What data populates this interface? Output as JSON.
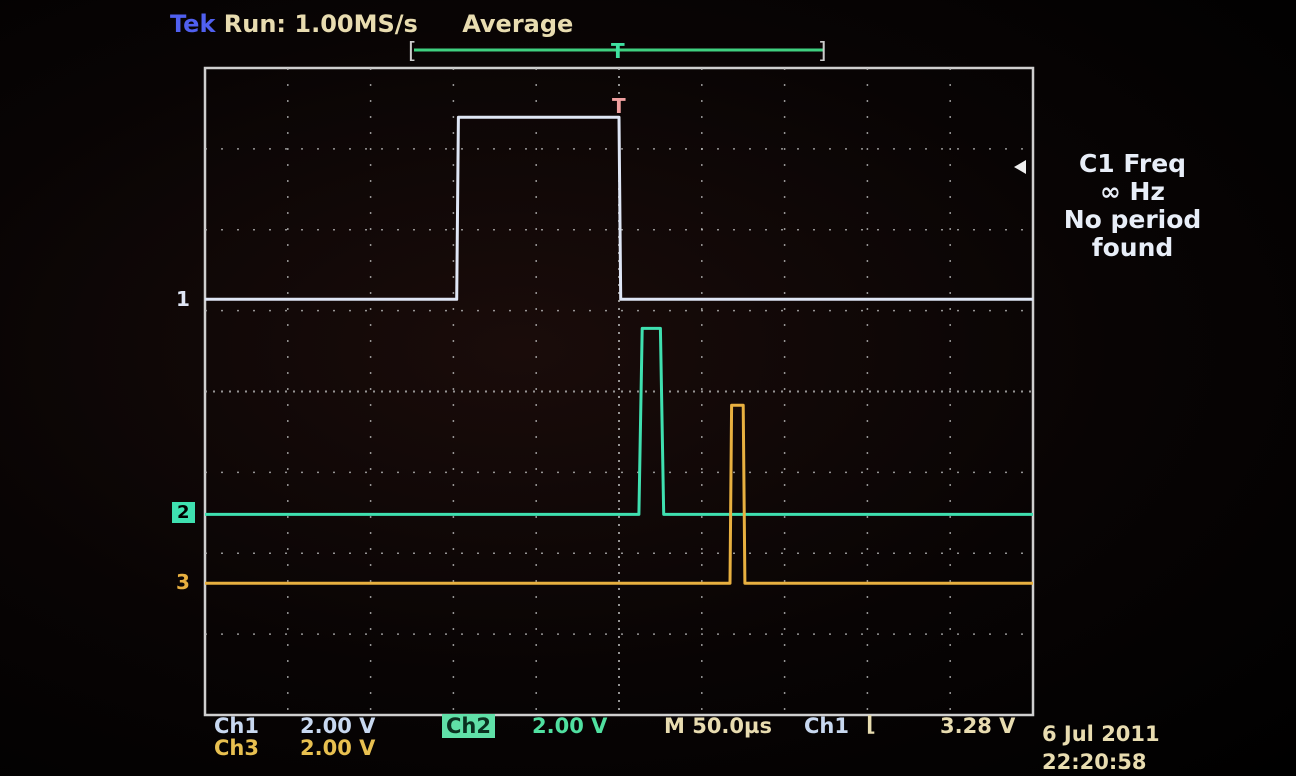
{
  "header": {
    "brand": "Tek",
    "run_status": "Run: 1.00MS/s",
    "acq_mode": "Average"
  },
  "measurement": {
    "title": "C1 Freq",
    "value": "∞ Hz",
    "line1": "No period",
    "line2": "found"
  },
  "footer": {
    "ch1_label": "Ch1",
    "ch1_scale": "2.00 V",
    "ch2_label": "Ch2",
    "ch2_scale": "2.00 V",
    "ch3_label": "Ch3",
    "ch3_scale": "2.00 V",
    "timebase": "M 50.0µs",
    "trigger_source": "Ch1",
    "trigger_slope": "⌊",
    "trigger_level": "3.28 V",
    "date": "6 Jul 2011",
    "time": "22:20:58"
  },
  "markers": {
    "ch1": "1",
    "ch2": "2",
    "ch3": "3",
    "trigger": "T"
  },
  "colors": {
    "ch1": "#dfe6f5",
    "ch2": "#3fe0b0",
    "ch3": "#e8b040",
    "grid": "#b8b8b8",
    "brand": "#5060f0",
    "text": "#e8dcb0"
  },
  "chart_data": {
    "type": "line",
    "xlabel": "",
    "ylabel": "",
    "x_unit": "µs",
    "y_unit": "V",
    "xlim": [
      -250,
      250
    ],
    "divisions": {
      "horizontal": 10,
      "vertical": 8
    },
    "time_per_div_us": 50,
    "grid": true,
    "series": [
      {
        "name": "Ch1",
        "volts_per_div": 2.0,
        "offset_div": 1.14,
        "x": [
          -250,
          -98,
          -97,
          0,
          1,
          250
        ],
        "y": [
          0,
          0,
          4.5,
          4.5,
          0,
          0
        ]
      },
      {
        "name": "Ch2",
        "volts_per_div": 2.0,
        "offset_div": -1.52,
        "x": [
          -250,
          12,
          14,
          25,
          27,
          250
        ],
        "y": [
          0,
          0,
          4.6,
          4.6,
          0,
          0
        ]
      },
      {
        "name": "Ch3",
        "volts_per_div": 2.0,
        "offset_div": -2.37,
        "x": [
          -250,
          67,
          68,
          75,
          76,
          250
        ],
        "y": [
          0,
          0,
          4.4,
          4.4,
          0,
          0
        ]
      }
    ]
  }
}
